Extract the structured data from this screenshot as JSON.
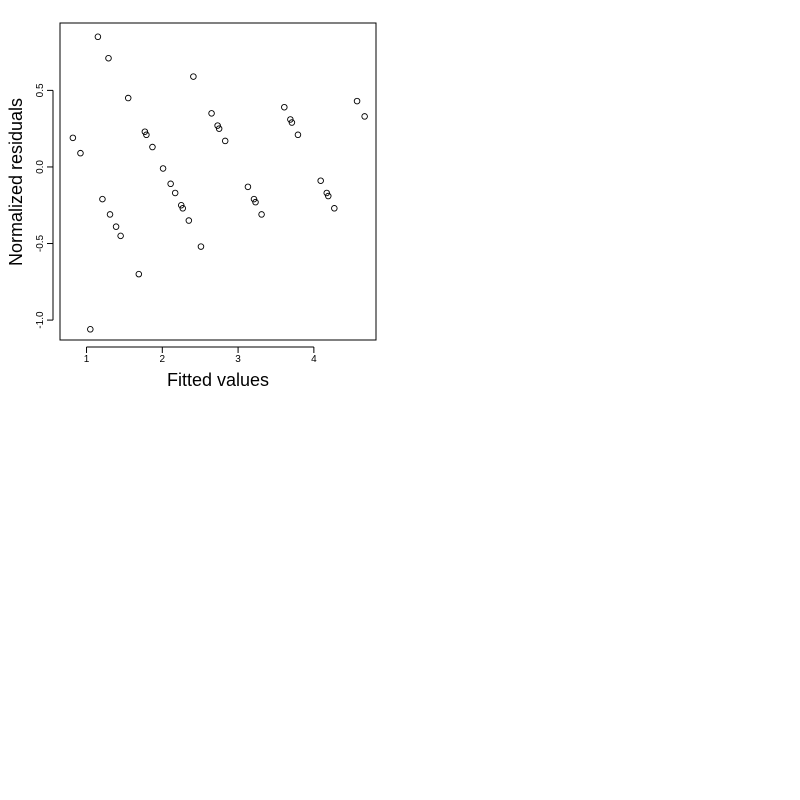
{
  "chart_data": {
    "type": "scatter",
    "title": "",
    "xlabel": "Fitted values",
    "ylabel": "Normalized residuals",
    "xlim": [
      0.65,
      4.82
    ],
    "ylim": [
      -1.13,
      0.94
    ],
    "x_ticks": [
      1,
      2,
      3,
      4
    ],
    "x_tick_labels": [
      "1",
      "2",
      "3",
      "4"
    ],
    "y_ticks": [
      -1.0,
      -0.5,
      0.0,
      0.5
    ],
    "y_tick_labels": [
      "-1.0",
      "-0.5",
      "0.0",
      "0.5"
    ],
    "grid": false,
    "legend": "none",
    "marker": "open-circle",
    "colors": {
      "points": "#000000",
      "axes": "#000000",
      "frame": "#000000"
    },
    "points": [
      {
        "x": 0.82,
        "y": 0.19
      },
      {
        "x": 0.92,
        "y": 0.09
      },
      {
        "x": 1.05,
        "y": -1.06
      },
      {
        "x": 1.15,
        "y": 0.85
      },
      {
        "x": 1.21,
        "y": -0.21
      },
      {
        "x": 1.29,
        "y": 0.71
      },
      {
        "x": 1.31,
        "y": -0.31
      },
      {
        "x": 1.39,
        "y": -0.39
      },
      {
        "x": 1.45,
        "y": -0.45
      },
      {
        "x": 1.55,
        "y": 0.45
      },
      {
        "x": 1.69,
        "y": -0.7
      },
      {
        "x": 1.77,
        "y": 0.23
      },
      {
        "x": 1.79,
        "y": 0.21
      },
      {
        "x": 1.87,
        "y": 0.13
      },
      {
        "x": 2.01,
        "y": -0.01
      },
      {
        "x": 2.11,
        "y": -0.11
      },
      {
        "x": 2.17,
        "y": -0.17
      },
      {
        "x": 2.25,
        "y": -0.25
      },
      {
        "x": 2.27,
        "y": -0.27
      },
      {
        "x": 2.35,
        "y": -0.35
      },
      {
        "x": 2.41,
        "y": 0.59
      },
      {
        "x": 2.51,
        "y": -0.52
      },
      {
        "x": 2.65,
        "y": 0.35
      },
      {
        "x": 2.73,
        "y": 0.27
      },
      {
        "x": 2.75,
        "y": 0.25
      },
      {
        "x": 2.83,
        "y": 0.17
      },
      {
        "x": 3.13,
        "y": -0.13
      },
      {
        "x": 3.21,
        "y": -0.21
      },
      {
        "x": 3.23,
        "y": -0.23
      },
      {
        "x": 3.31,
        "y": -0.31
      },
      {
        "x": 3.61,
        "y": 0.39
      },
      {
        "x": 3.69,
        "y": 0.31
      },
      {
        "x": 3.71,
        "y": 0.29
      },
      {
        "x": 3.79,
        "y": 0.21
      },
      {
        "x": 4.09,
        "y": -0.09
      },
      {
        "x": 4.17,
        "y": -0.17
      },
      {
        "x": 4.19,
        "y": -0.19
      },
      {
        "x": 4.27,
        "y": -0.27
      },
      {
        "x": 4.57,
        "y": 0.43
      },
      {
        "x": 4.67,
        "y": 0.33
      }
    ]
  }
}
